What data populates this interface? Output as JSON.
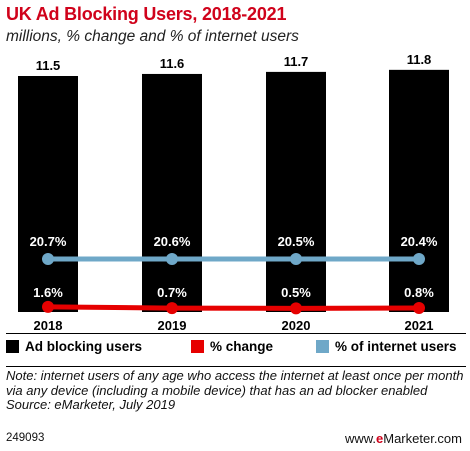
{
  "header": {
    "title": "UK Ad Blocking Users, 2018-2021",
    "subtitle": "millions, % change and % of internet users"
  },
  "chart_data": {
    "type": "bar",
    "categories": [
      "2018",
      "2019",
      "2020",
      "2021"
    ],
    "series": [
      {
        "name": "Ad blocking users",
        "type": "bar",
        "color": "#000000",
        "values": [
          11.5,
          11.6,
          11.7,
          11.8
        ],
        "labels": [
          "11.5",
          "11.6",
          "11.7",
          "11.8"
        ]
      },
      {
        "name": "% change",
        "type": "line",
        "color": "#e60000",
        "values": [
          1.6,
          0.7,
          0.5,
          0.8
        ],
        "labels": [
          "1.6%",
          "0.7%",
          "0.5%",
          "0.8%"
        ]
      },
      {
        "name": "% of internet users",
        "type": "line",
        "color": "#6fa8c8",
        "values": [
          20.7,
          20.6,
          20.5,
          20.4
        ],
        "labels": [
          "20.7%",
          "20.6%",
          "20.5%",
          "20.4%"
        ]
      }
    ],
    "legend_position": "bottom",
    "grid": false
  },
  "legend": {
    "bar_label": "Ad blocking users",
    "change_label": "% change",
    "share_label": "% of internet users"
  },
  "note": {
    "text": "Note: internet users of any age who access the internet at least once per month via any device (including a mobile device) that has an ad blocker enabled",
    "source": "Source: eMarketer, July 2019"
  },
  "footer": {
    "chart_id": "249093",
    "brand_prefix": "www.",
    "brand_e": "e",
    "brand_suffix": "Marketer.com"
  }
}
